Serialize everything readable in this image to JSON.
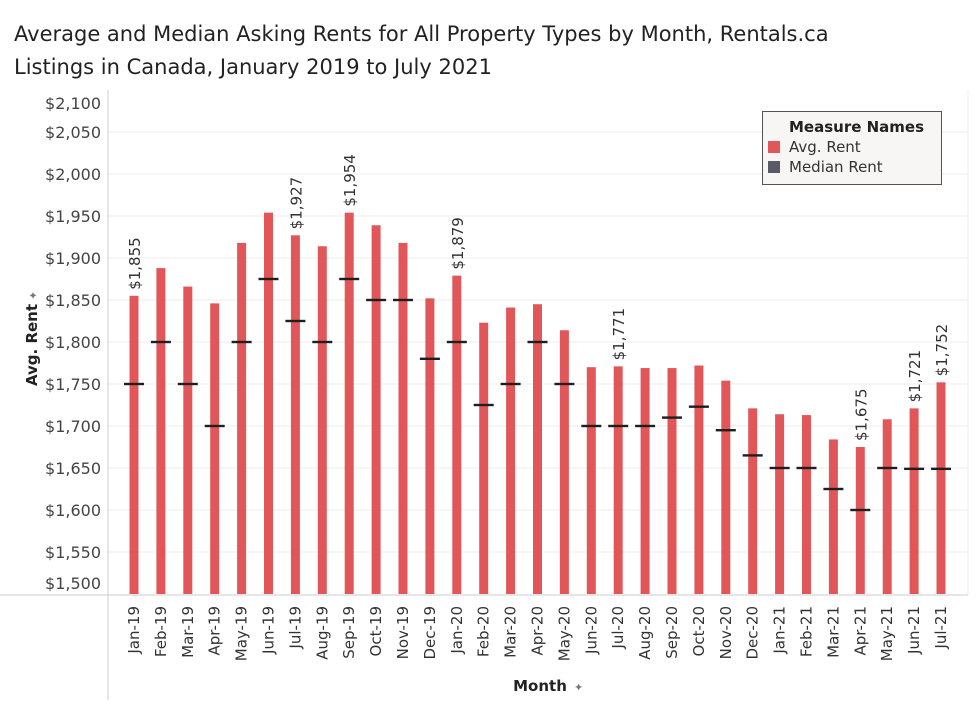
{
  "title_lines": [
    "Average and Median Asking Rents for All Property Types by Month, Rentals.ca",
    "Listings in Canada, January 2019 to July 2021"
  ],
  "legend": {
    "title": "Measure Names",
    "items": [
      "Avg. Rent",
      "Median Rent"
    ]
  },
  "colors": {
    "avg": "#e15759",
    "median": "#1f1f1f",
    "median_swatch": "#5a5a66",
    "grid": "#ececec"
  },
  "chart_data": {
    "type": "bar",
    "title": "Average and Median Asking Rents for All Property Types by Month, Rentals.ca Listings in Canada, January 2019 to July 2021",
    "xlabel": "Month",
    "ylabel": "Avg. Rent",
    "ylim": [
      1500,
      2100
    ],
    "yticks": [
      "$1,500",
      "$1,550",
      "$1,600",
      "$1,650",
      "$1,700",
      "$1,750",
      "$1,800",
      "$1,850",
      "$1,900",
      "$1,950",
      "$2,000",
      "$2,050",
      "$2,100"
    ],
    "ytick_values": [
      1500,
      1550,
      1600,
      1650,
      1700,
      1750,
      1800,
      1850,
      1900,
      1950,
      2000,
      2050,
      2100
    ],
    "grid": true,
    "legend_position": "top-right",
    "categories": [
      "Jan-19",
      "Feb-19",
      "Mar-19",
      "Apr-19",
      "May-19",
      "Jun-19",
      "Jul-19",
      "Aug-19",
      "Sep-19",
      "Oct-19",
      "Nov-19",
      "Dec-19",
      "Jan-20",
      "Feb-20",
      "Mar-20",
      "Apr-20",
      "May-20",
      "Jun-20",
      "Jul-20",
      "Aug-20",
      "Sep-20",
      "Oct-20",
      "Nov-20",
      "Dec-20",
      "Jan-21",
      "Feb-21",
      "Mar-21",
      "Apr-21",
      "May-21",
      "Jun-21",
      "Jul-21"
    ],
    "series": [
      {
        "name": "Avg. Rent",
        "values": [
          1855,
          1888,
          1866,
          1846,
          1918,
          1954,
          1927,
          1914,
          1954,
          1939,
          1918,
          1852,
          1879,
          1823,
          1841,
          1845,
          1814,
          1770,
          1771,
          1769,
          1769,
          1772,
          1754,
          1721,
          1714,
          1713,
          1684,
          1675,
          1708,
          1721,
          1752
        ]
      },
      {
        "name": "Median Rent",
        "values": [
          1750,
          1800,
          1750,
          1700,
          1800,
          1875,
          1825,
          1800,
          1875,
          1850,
          1850,
          1780,
          1800,
          1725,
          1750,
          1800,
          1750,
          1700,
          1700,
          1700,
          1710,
          1723,
          1695,
          1665,
          1650,
          1650,
          1625,
          1600,
          1650,
          1649,
          1649
        ]
      }
    ],
    "data_labels": {
      "Jan-19": "$1,855",
      "Jul-19": "$1,927",
      "Sep-19": "$1,954",
      "Jan-20": "$1,879",
      "Jul-20": "$1,771",
      "Apr-21": "$1,675",
      "Jun-21": "$1,721",
      "Jul-21": "$1,752"
    }
  }
}
